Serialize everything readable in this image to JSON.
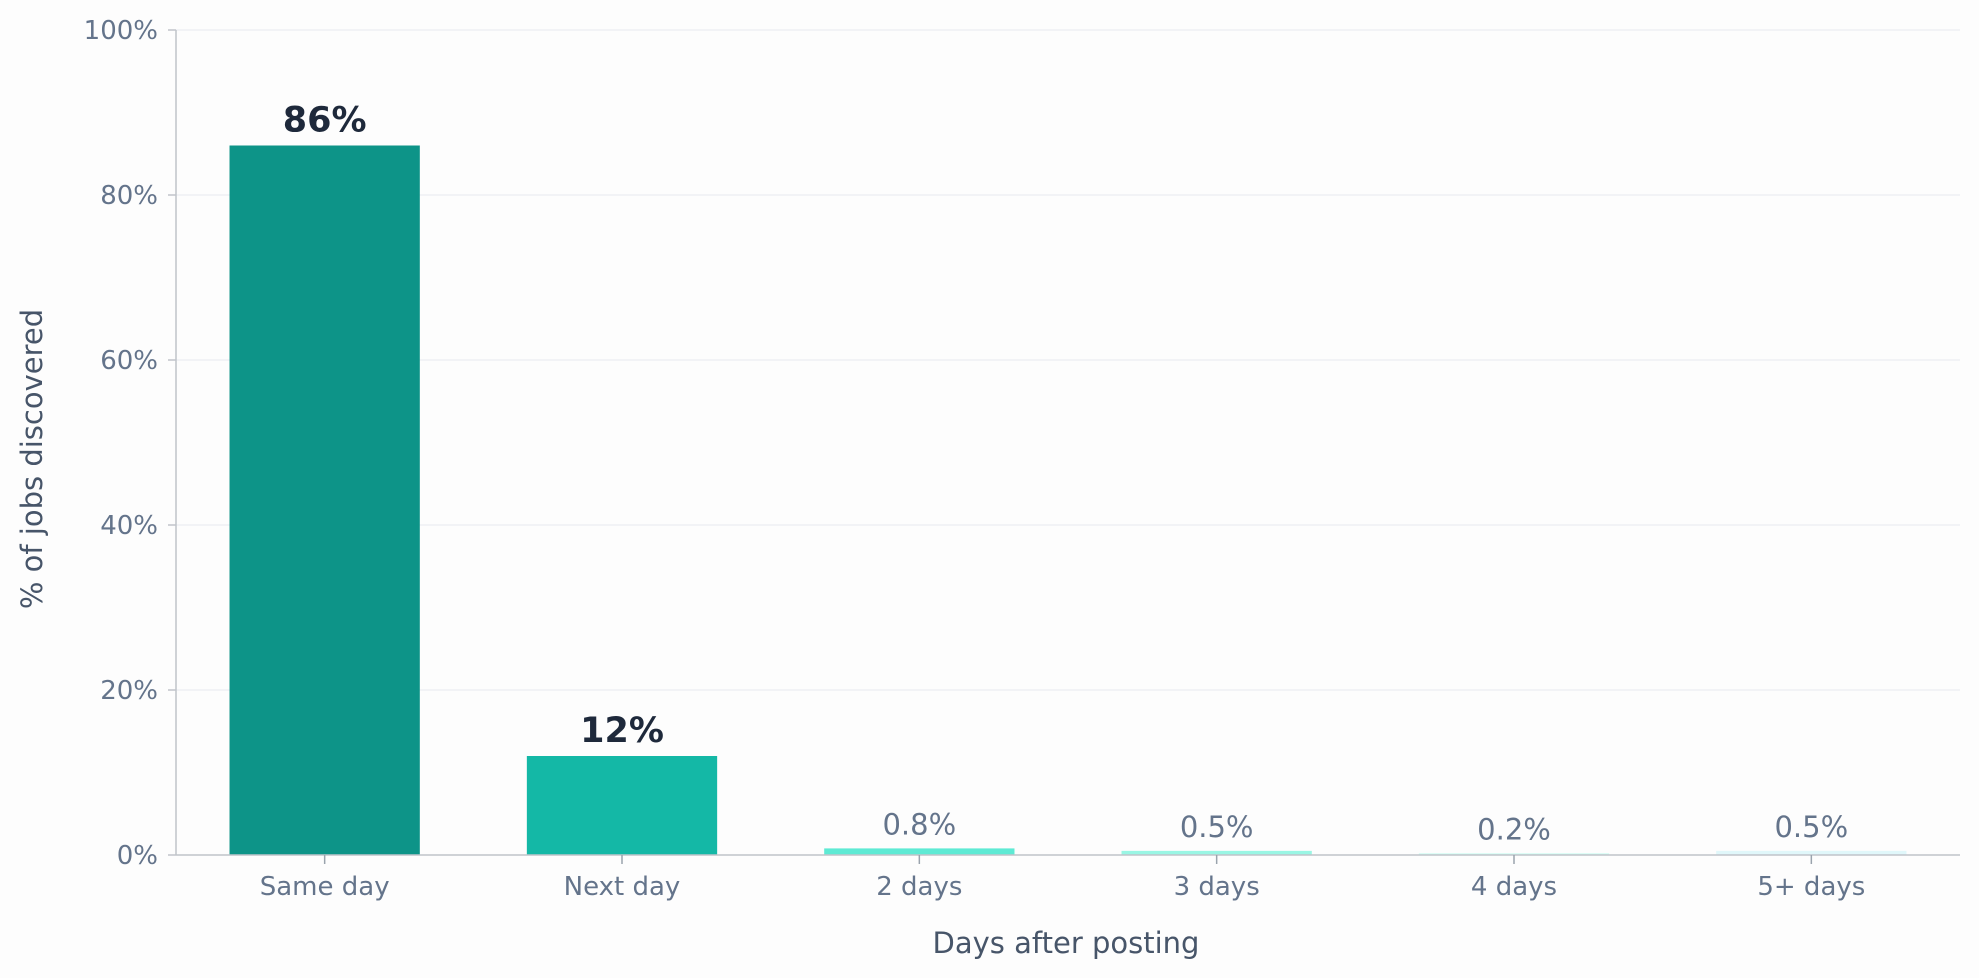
{
  "chart_data": {
    "type": "bar",
    "xlabel": "Days after posting",
    "ylabel": "% of jobs discovered",
    "ylim": [
      0,
      100
    ],
    "y_ticks": [
      {
        "value": 0,
        "label": "0%"
      },
      {
        "value": 20,
        "label": "20%"
      },
      {
        "value": 40,
        "label": "40%"
      },
      {
        "value": 60,
        "label": "60%"
      },
      {
        "value": 80,
        "label": "80%"
      },
      {
        "value": 100,
        "label": "100%"
      }
    ],
    "categories": [
      "Same day",
      "Next day",
      "2 days",
      "3 days",
      "4 days",
      "5+ days"
    ],
    "values": [
      86,
      12,
      0.8,
      0.5,
      0.2,
      0.5
    ],
    "data_labels": [
      "86%",
      "12%",
      "0.8%",
      "0.5%",
      "0.2%",
      "0.5%"
    ],
    "bar_colors": [
      "#0d9488",
      "#14b8a6",
      "#5eead4",
      "#99f6e4",
      "#ccfbf1",
      "#e0f7fa"
    ],
    "grid": true,
    "legend": false
  }
}
